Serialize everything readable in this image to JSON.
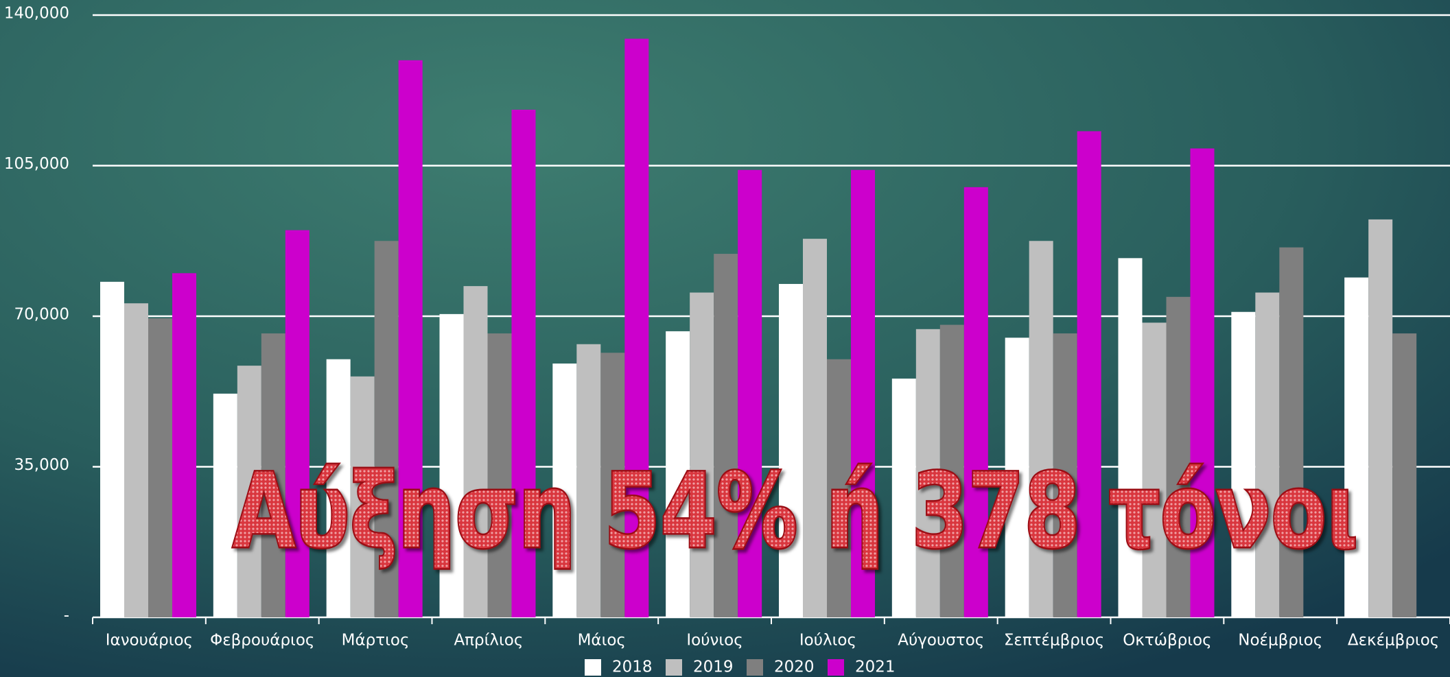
{
  "chart_data": {
    "type": "bar",
    "annotation": "Αύξηση 54% ή 378 τόνοι",
    "categories": [
      "Ιανουάριος",
      "Φεβρουάριος",
      "Μάρτιος",
      "Απρίλιος",
      "Μάιος",
      "Ιούνιος",
      "Ιούλιος",
      "Αύγουστος",
      "Σεπτέμβριος",
      "Οκτώβριος",
      "Νοέμβριος",
      "Δεκέμβριος"
    ],
    "series": [
      {
        "name": "2018",
        "color": "#ffffff",
        "values": [
          78000,
          52000,
          60000,
          70500,
          59000,
          66500,
          77500,
          55500,
          65000,
          83500,
          71000,
          79000
        ]
      },
      {
        "name": "2019",
        "color": "#bfbfbf",
        "values": [
          73000,
          58500,
          56000,
          77000,
          63500,
          75500,
          88000,
          67000,
          87500,
          68500,
          75500,
          92500
        ]
      },
      {
        "name": "2020",
        "color": "#7f7f7f",
        "values": [
          69500,
          66000,
          87500,
          66000,
          61500,
          84500,
          60000,
          68000,
          66000,
          74500,
          86000,
          66000
        ]
      },
      {
        "name": "2021",
        "color": "#cc00cc",
        "values": [
          80000,
          90000,
          129500,
          118000,
          134500,
          104000,
          104000,
          100000,
          113000,
          109000,
          null,
          null
        ]
      }
    ],
    "ylim": [
      0,
      140000
    ],
    "yticks": [
      {
        "value": 0,
        "label": "-"
      },
      {
        "value": 35000,
        "label": "35,000"
      },
      {
        "value": 70000,
        "label": "70,000"
      },
      {
        "value": 105000,
        "label": "105,000"
      },
      {
        "value": 140000,
        "label": "140,000"
      }
    ],
    "grid": true,
    "legend": "bottom"
  }
}
